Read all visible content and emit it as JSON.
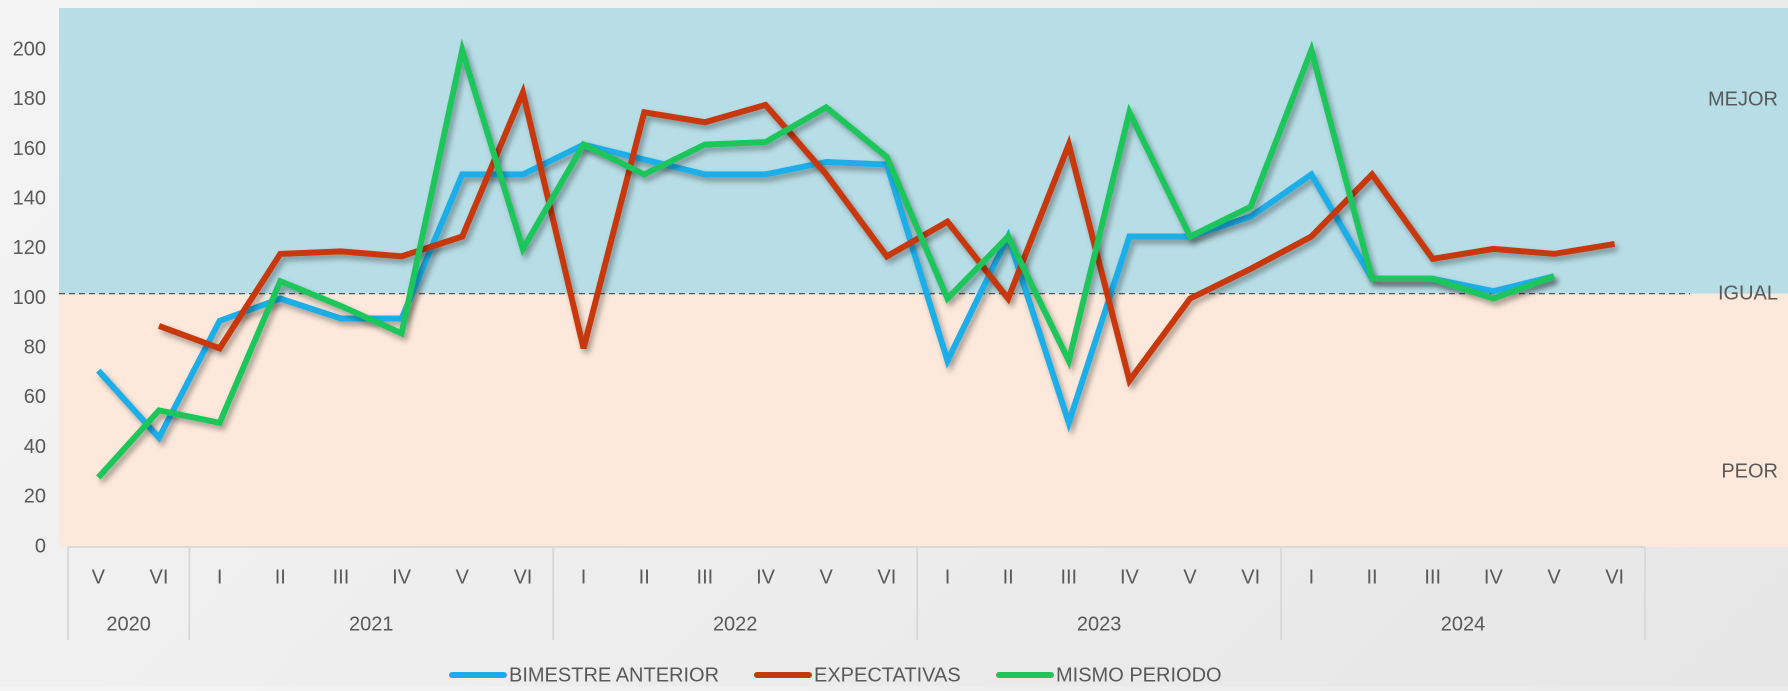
{
  "chart_data": {
    "type": "line",
    "groups": [
      {
        "label": "2020",
        "categories": [
          "V",
          "VI"
        ]
      },
      {
        "label": "2021",
        "categories": [
          "I",
          "II",
          "III",
          "IV",
          "V",
          "VI"
        ]
      },
      {
        "label": "2022",
        "categories": [
          "I",
          "II",
          "III",
          "IV",
          "V",
          "VI"
        ]
      },
      {
        "label": "2023",
        "categories": [
          "I",
          "II",
          "III",
          "IV",
          "V",
          "VI"
        ]
      },
      {
        "label": "2024",
        "categories": [
          "I",
          "II",
          "III",
          "IV",
          "V",
          "VI"
        ]
      }
    ],
    "series": [
      {
        "name": "BIMESTRE ANTERIOR",
        "color": "#1aaee8",
        "values": [
          71,
          44,
          91,
          100,
          92,
          92,
          150,
          150,
          162,
          156,
          150,
          150,
          155,
          154,
          75,
          125,
          50,
          125,
          125,
          133,
          150,
          108,
          108,
          103,
          109,
          null
        ]
      },
      {
        "name": "EXPECTATIVAS",
        "color": "#c8380f",
        "values": [
          null,
          89,
          80,
          118,
          119,
          117,
          125,
          183,
          80,
          175,
          171,
          178,
          150,
          117,
          131,
          100,
          162,
          67,
          100,
          112,
          125,
          150,
          116,
          120,
          118,
          122
        ]
      },
      {
        "name": "MISMO PERIODO",
        "color": "#1dc65a",
        "values": [
          28,
          55,
          50,
          107,
          97,
          86,
          200,
          120,
          162,
          150,
          162,
          163,
          177,
          157,
          100,
          125,
          75,
          175,
          125,
          137,
          200,
          108,
          108,
          100,
          109,
          null
        ]
      }
    ],
    "ylim": [
      0,
      217
    ],
    "yticks": [
      0,
      20,
      40,
      60,
      80,
      100,
      120,
      140,
      160,
      180,
      200
    ],
    "reference": 102,
    "bands": [
      {
        "label": "MEJOR",
        "color": "#b7dde6"
      },
      {
        "label": "IGUAL"
      },
      {
        "label": "PEOR",
        "color": "#fde9db"
      }
    ]
  }
}
